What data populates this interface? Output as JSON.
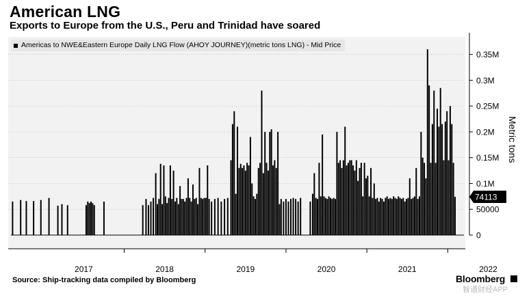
{
  "header": {
    "title": "American LNG",
    "subtitle": "Exports to Europe from the U.S., Peru and Trinidad have soared"
  },
  "legend": {
    "label": "Americas to NWE&Eastern Europe Daily LNG Flow (AHOY JOURNEY)(metric tons LNG) - Mid Price"
  },
  "footer": {
    "source": "Source: Ship-tracking data compiled by Bloomberg",
    "brand": "Bloomberg",
    "watermark": "智通财经APP"
  },
  "colors": {
    "series": "#000000",
    "plot_background": "#f2f2f2",
    "grid": "#aaaaaa"
  },
  "chart_data": {
    "type": "bar",
    "title": "American LNG",
    "subtitle": "Exports to Europe from the U.S., Peru and Trinidad have soared",
    "ylabel": "Metric tons",
    "xlabel": "",
    "ylim": [
      0,
      380000
    ],
    "xlim": [
      2016.6,
      2022.2
    ],
    "grid": true,
    "legend_position": "top-left",
    "x_ticks": [
      "2017",
      "2018",
      "2019",
      "2020",
      "2021",
      "2022"
    ],
    "x_tick_values": [
      2017.0,
      2018.0,
      2019.0,
      2020.0,
      2021.0,
      2022.0
    ],
    "y_ticks": [
      "0",
      "50000",
      "0.1M",
      "0.15M",
      "0.2M",
      "0.25M",
      "0.3M",
      "0.35M"
    ],
    "y_tick_values": [
      0,
      50000,
      100000,
      150000,
      200000,
      250000,
      300000,
      350000
    ],
    "last_value_label": "74113",
    "last_value": 74113,
    "series": [
      {
        "name": "Americas to NWE&Eastern Europe Daily LNG Flow (AHOY JOURNEY)(metric tons LNG) - Mid Price",
        "points": [
          [
            2016.62,
            65000
          ],
          [
            2016.72,
            68000
          ],
          [
            2016.79,
            66000
          ],
          [
            2016.88,
            66000
          ],
          [
            2016.97,
            68000
          ],
          [
            2017.07,
            72000
          ],
          [
            2017.18,
            57000
          ],
          [
            2017.23,
            60000
          ],
          [
            2017.3,
            58000
          ],
          [
            2017.53,
            58000
          ],
          [
            2017.55,
            65000
          ],
          [
            2017.57,
            62000
          ],
          [
            2017.59,
            65000
          ],
          [
            2017.61,
            62000
          ],
          [
            2017.63,
            58000
          ],
          [
            2017.75,
            65000
          ],
          [
            2018.23,
            58000
          ],
          [
            2018.27,
            70000
          ],
          [
            2018.3,
            58000
          ],
          [
            2018.33,
            65000
          ],
          [
            2018.36,
            72000
          ],
          [
            2018.39,
            120000
          ],
          [
            2018.41,
            60000
          ],
          [
            2018.43,
            70000
          ],
          [
            2018.45,
            138000
          ],
          [
            2018.47,
            60000
          ],
          [
            2018.49,
            135000
          ],
          [
            2018.51,
            75000
          ],
          [
            2018.53,
            62000
          ],
          [
            2018.55,
            72000
          ],
          [
            2018.57,
            135000
          ],
          [
            2018.59,
            70000
          ],
          [
            2018.61,
            125000
          ],
          [
            2018.63,
            65000
          ],
          [
            2018.65,
            72000
          ],
          [
            2018.67,
            60000
          ],
          [
            2018.69,
            95000
          ],
          [
            2018.71,
            70000
          ],
          [
            2018.73,
            70000
          ],
          [
            2018.75,
            65000
          ],
          [
            2018.77,
            72000
          ],
          [
            2018.79,
            110000
          ],
          [
            2018.81,
            72000
          ],
          [
            2018.83,
            65000
          ],
          [
            2018.85,
            98000
          ],
          [
            2018.87,
            70000
          ],
          [
            2018.89,
            72000
          ],
          [
            2018.91,
            60000
          ],
          [
            2018.93,
            130000
          ],
          [
            2018.95,
            72000
          ],
          [
            2018.97,
            70000
          ],
          [
            2018.99,
            72000
          ],
          [
            2019.01,
            72000
          ],
          [
            2019.03,
            135000
          ],
          [
            2019.05,
            70000
          ],
          [
            2019.08,
            65000
          ],
          [
            2019.12,
            70000
          ],
          [
            2019.16,
            72000
          ],
          [
            2019.2,
            65000
          ],
          [
            2019.24,
            70000
          ],
          [
            2019.28,
            72000
          ],
          [
            2019.32,
            145000
          ],
          [
            2019.34,
            215000
          ],
          [
            2019.36,
            240000
          ],
          [
            2019.38,
            80000
          ],
          [
            2019.4,
            210000
          ],
          [
            2019.42,
            130000
          ],
          [
            2019.44,
            138000
          ],
          [
            2019.46,
            130000
          ],
          [
            2019.48,
            135000
          ],
          [
            2019.5,
            125000
          ],
          [
            2019.52,
            140000
          ],
          [
            2019.54,
            135000
          ],
          [
            2019.56,
            190000
          ],
          [
            2019.58,
            100000
          ],
          [
            2019.6,
            75000
          ],
          [
            2019.62,
            70000
          ],
          [
            2019.64,
            80000
          ],
          [
            2019.66,
            130000
          ],
          [
            2019.68,
            140000
          ],
          [
            2019.7,
            280000
          ],
          [
            2019.72,
            120000
          ],
          [
            2019.74,
            200000
          ],
          [
            2019.76,
            140000
          ],
          [
            2019.78,
            125000
          ],
          [
            2019.8,
            200000
          ],
          [
            2019.82,
            205000
          ],
          [
            2019.84,
            135000
          ],
          [
            2019.86,
            145000
          ],
          [
            2019.88,
            130000
          ],
          [
            2019.9,
            200000
          ],
          [
            2019.92,
            60000
          ],
          [
            2019.94,
            70000
          ],
          [
            2019.97,
            65000
          ],
          [
            2020.0,
            70000
          ],
          [
            2020.03,
            65000
          ],
          [
            2020.06,
            70000
          ],
          [
            2020.09,
            72000
          ],
          [
            2020.12,
            70000
          ],
          [
            2020.15,
            65000
          ],
          [
            2020.18,
            72000
          ],
          [
            2020.3,
            65000
          ],
          [
            2020.33,
            80000
          ],
          [
            2020.35,
            120000
          ],
          [
            2020.37,
            72000
          ],
          [
            2020.39,
            70000
          ],
          [
            2020.41,
            140000
          ],
          [
            2020.43,
            75000
          ],
          [
            2020.45,
            195000
          ],
          [
            2020.47,
            75000
          ],
          [
            2020.49,
            72000
          ],
          [
            2020.51,
            70000
          ],
          [
            2020.53,
            75000
          ],
          [
            2020.55,
            72000
          ],
          [
            2020.57,
            70000
          ],
          [
            2020.59,
            72000
          ],
          [
            2020.61,
            70000
          ],
          [
            2020.63,
            200000
          ],
          [
            2020.65,
            140000
          ],
          [
            2020.67,
            145000
          ],
          [
            2020.69,
            130000
          ],
          [
            2020.71,
            145000
          ],
          [
            2020.73,
            210000
          ],
          [
            2020.75,
            135000
          ],
          [
            2020.77,
            140000
          ],
          [
            2020.79,
            145000
          ],
          [
            2020.81,
            145000
          ],
          [
            2020.83,
            135000
          ],
          [
            2020.85,
            125000
          ],
          [
            2020.87,
            145000
          ],
          [
            2020.89,
            105000
          ],
          [
            2020.91,
            130000
          ],
          [
            2020.93,
            140000
          ],
          [
            2020.95,
            75000
          ],
          [
            2020.97,
            140000
          ],
          [
            2020.99,
            110000
          ],
          [
            2021.01,
            115000
          ],
          [
            2021.03,
            75000
          ],
          [
            2021.05,
            130000
          ],
          [
            2021.07,
            72000
          ],
          [
            2021.09,
            100000
          ],
          [
            2021.11,
            70000
          ],
          [
            2021.13,
            72000
          ],
          [
            2021.15,
            65000
          ],
          [
            2021.17,
            72000
          ],
          [
            2021.19,
            70000
          ],
          [
            2021.21,
            65000
          ],
          [
            2021.23,
            72000
          ],
          [
            2021.25,
            75000
          ],
          [
            2021.27,
            70000
          ],
          [
            2021.29,
            72000
          ],
          [
            2021.31,
            70000
          ],
          [
            2021.33,
            75000
          ],
          [
            2021.35,
            72000
          ],
          [
            2021.37,
            70000
          ],
          [
            2021.39,
            75000
          ],
          [
            2021.41,
            72000
          ],
          [
            2021.43,
            70000
          ],
          [
            2021.45,
            72000
          ],
          [
            2021.47,
            65000
          ],
          [
            2021.49,
            70000
          ],
          [
            2021.51,
            72000
          ],
          [
            2021.53,
            110000
          ],
          [
            2021.55,
            70000
          ],
          [
            2021.57,
            72000
          ],
          [
            2021.59,
            75000
          ],
          [
            2021.61,
            130000
          ],
          [
            2021.63,
            70000
          ],
          [
            2021.65,
            75000
          ],
          [
            2021.67,
            200000
          ],
          [
            2021.69,
            150000
          ],
          [
            2021.71,
            140000
          ],
          [
            2021.73,
            110000
          ],
          [
            2021.75,
            360000
          ],
          [
            2021.77,
            290000
          ],
          [
            2021.79,
            140000
          ],
          [
            2021.81,
            215000
          ],
          [
            2021.83,
            280000
          ],
          [
            2021.85,
            140000
          ],
          [
            2021.87,
            245000
          ],
          [
            2021.89,
            210000
          ],
          [
            2021.91,
            285000
          ],
          [
            2021.93,
            215000
          ],
          [
            2021.95,
            145000
          ],
          [
            2021.97,
            220000
          ],
          [
            2021.99,
            240000
          ],
          [
            2022.01,
            145000
          ],
          [
            2022.03,
            250000
          ],
          [
            2022.05,
            215000
          ],
          [
            2022.07,
            140000
          ],
          [
            2022.09,
            74113
          ]
        ]
      }
    ]
  }
}
